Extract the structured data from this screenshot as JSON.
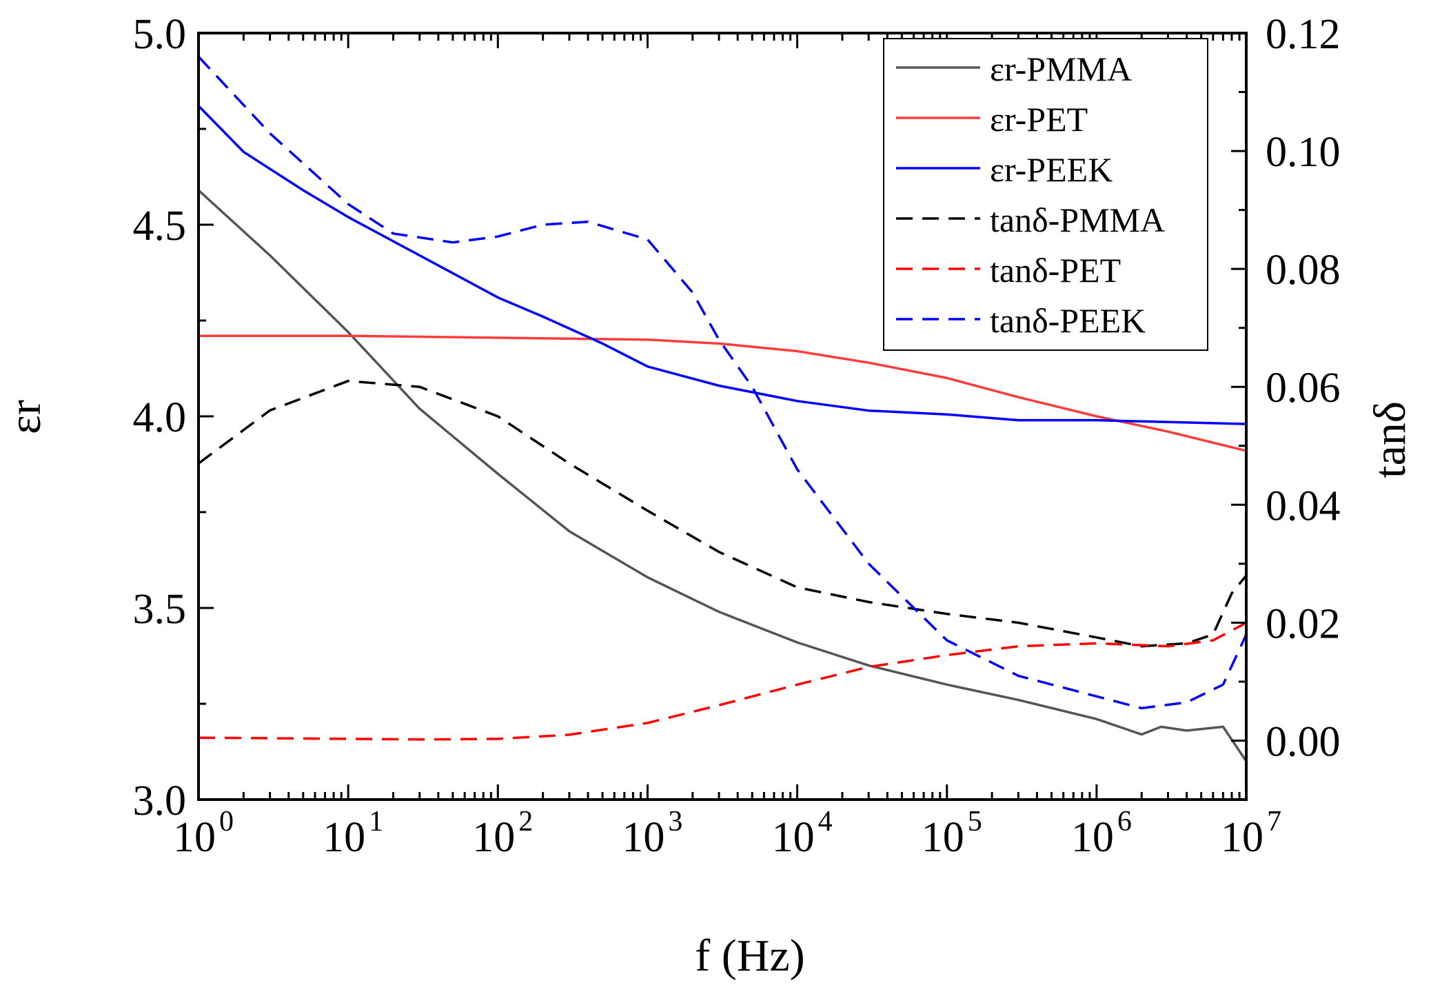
{
  "chart_data": {
    "type": "line",
    "xlabel": "f (Hz)",
    "ylabel_left": "εr",
    "ylabel_right": "tanδ",
    "x_scale": "log",
    "xlim": [
      1,
      10000000
    ],
    "ylim_left": [
      3.0,
      5.0
    ],
    "ylim_right": [
      -0.01,
      0.12
    ],
    "x_ticks": [
      {
        "value": 1,
        "base": "10",
        "exp": "0"
      },
      {
        "value": 10,
        "base": "10",
        "exp": "1"
      },
      {
        "value": 100,
        "base": "10",
        "exp": "2"
      },
      {
        "value": 1000,
        "base": "10",
        "exp": "3"
      },
      {
        "value": 10000,
        "base": "10",
        "exp": "4"
      },
      {
        "value": 100000,
        "base": "10",
        "exp": "5"
      },
      {
        "value": 1000000,
        "base": "10",
        "exp": "6"
      },
      {
        "value": 10000000,
        "base": "10",
        "exp": "7"
      }
    ],
    "y_left_ticks": [
      {
        "value": 3.0,
        "label": "3.0"
      },
      {
        "value": 3.5,
        "label": "3.5"
      },
      {
        "value": 4.0,
        "label": "4.0"
      },
      {
        "value": 4.5,
        "label": "4.5"
      },
      {
        "value": 5.0,
        "label": "5.0"
      }
    ],
    "y_right_ticks": [
      {
        "value": 0.0,
        "label": "0.00"
      },
      {
        "value": 0.02,
        "label": "0.02"
      },
      {
        "value": 0.04,
        "label": "0.04"
      },
      {
        "value": 0.06,
        "label": "0.06"
      },
      {
        "value": 0.08,
        "label": "0.08"
      },
      {
        "value": 0.1,
        "label": "0.10"
      },
      {
        "value": 0.12,
        "label": "0.12"
      }
    ],
    "grid": false,
    "legend_position": "top-right",
    "series": [
      {
        "name": "εr-PMMA",
        "axis": "left",
        "color": "#555555",
        "dash": "solid",
        "x": [
          1,
          3,
          10,
          30,
          100,
          300,
          1000,
          3000,
          10000,
          30000,
          100000,
          300000,
          1000000,
          2000000,
          2700000,
          4000000,
          7000000,
          10000000
        ],
        "y": [
          4.59,
          4.42,
          4.22,
          4.02,
          3.85,
          3.7,
          3.58,
          3.49,
          3.41,
          3.35,
          3.3,
          3.26,
          3.21,
          3.17,
          3.19,
          3.18,
          3.19,
          3.1
        ]
      },
      {
        "name": "εr-PET",
        "axis": "left",
        "color": "#ff3b3b",
        "dash": "solid",
        "x": [
          1,
          10,
          100,
          1000,
          3000,
          10000,
          30000,
          100000,
          300000,
          1000000,
          3000000,
          10000000
        ],
        "y": [
          4.21,
          4.21,
          4.205,
          4.2,
          4.19,
          4.17,
          4.14,
          4.1,
          4.05,
          4.0,
          3.96,
          3.91
        ]
      },
      {
        "name": "εr-PEEK",
        "axis": "left",
        "color": "#0000ff",
        "dash": "solid",
        "x": [
          1,
          2,
          5,
          10,
          30,
          100,
          200,
          500,
          1000,
          3000,
          10000,
          30000,
          100000,
          300000,
          1000000,
          3000000,
          10000000
        ],
        "y": [
          4.81,
          4.69,
          4.59,
          4.52,
          4.42,
          4.31,
          4.26,
          4.19,
          4.13,
          4.08,
          4.04,
          4.015,
          4.005,
          3.99,
          3.99,
          3.985,
          3.98
        ]
      },
      {
        "name": "tanδ-PMMA",
        "axis": "right",
        "color": "#000000",
        "dash": "dashed",
        "x": [
          1,
          3,
          10,
          30,
          100,
          300,
          1000,
          3000,
          10000,
          30000,
          100000,
          300000,
          1000000,
          2000000,
          4000000,
          6000000,
          8000000,
          10000000
        ],
        "y": [
          0.047,
          0.056,
          0.061,
          0.06,
          0.055,
          0.047,
          0.039,
          0.032,
          0.026,
          0.0235,
          0.0215,
          0.02,
          0.0175,
          0.016,
          0.0165,
          0.018,
          0.025,
          0.028
        ]
      },
      {
        "name": "tanδ-PET",
        "axis": "right",
        "color": "#ff0000",
        "dash": "dashed",
        "x": [
          1,
          10,
          30,
          100,
          300,
          1000,
          3000,
          10000,
          30000,
          100000,
          300000,
          1000000,
          3000000,
          6000000,
          10000000
        ],
        "y": [
          0.0005,
          0.0003,
          0.0002,
          0.0003,
          0.001,
          0.003,
          0.006,
          0.0095,
          0.0125,
          0.0145,
          0.016,
          0.0165,
          0.016,
          0.017,
          0.02
        ]
      },
      {
        "name": "tanδ-PEEK",
        "axis": "right",
        "color": "#0000ff",
        "dash": "dashed",
        "x": [
          1,
          3,
          10,
          20,
          50,
          100,
          200,
          400,
          1000,
          2000,
          3000,
          5000,
          10000,
          30000,
          100000,
          300000,
          1000000,
          2000000,
          4000000,
          7000000,
          10000000
        ],
        "y": [
          0.116,
          0.103,
          0.091,
          0.086,
          0.0845,
          0.0855,
          0.0875,
          0.088,
          0.085,
          0.076,
          0.068,
          0.06,
          0.046,
          0.03,
          0.017,
          0.011,
          0.0075,
          0.0055,
          0.0065,
          0.0095,
          0.018
        ]
      }
    ]
  }
}
